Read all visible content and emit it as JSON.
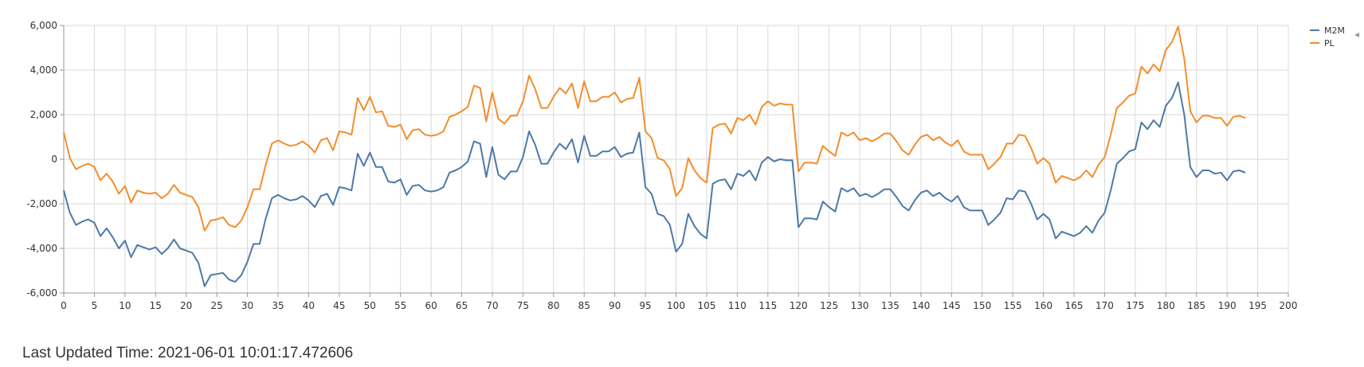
{
  "footer": {
    "label": "Last Updated Time:",
    "timestamp": "2021-06-01 10:01:17.472606"
  },
  "colors": {
    "M2M": "#4e79a7",
    "PL": "#f28e2b",
    "grid": "#d9d9d9",
    "axis": "#999999"
  },
  "chart_data": {
    "type": "line",
    "title": "",
    "xlabel": "",
    "ylabel": "",
    "xlim": [
      0,
      200
    ],
    "ylim": [
      -6000,
      6000
    ],
    "x_ticks": [
      0,
      5,
      10,
      15,
      20,
      25,
      30,
      35,
      40,
      45,
      50,
      55,
      60,
      65,
      70,
      75,
      80,
      85,
      90,
      95,
      100,
      105,
      110,
      115,
      120,
      125,
      130,
      135,
      140,
      145,
      150,
      155,
      160,
      165,
      170,
      175,
      180,
      185,
      190,
      195,
      200
    ],
    "y_ticks": [
      -6000,
      -4000,
      -2000,
      0,
      2000,
      4000,
      6000
    ],
    "y_tick_labels": [
      "-6,000",
      "-4,000",
      "-2,000",
      "0",
      "2,000",
      "4,000",
      "6,000"
    ],
    "grid": true,
    "legend_position": "top-right",
    "series": [
      {
        "name": "M2M",
        "color": "#4e79a7",
        "values": [
          -1400,
          -2400,
          -2950,
          -2800,
          -2700,
          -2850,
          -3450,
          -3100,
          -3500,
          -4000,
          -3650,
          -4400,
          -3850,
          -3950,
          -4050,
          -3950,
          -4250,
          -4000,
          -3600,
          -4000,
          -4100,
          -4200,
          -4650,
          -5700,
          -5200,
          -5150,
          -5100,
          -5400,
          -5500,
          -5200,
          -4600,
          -3800,
          -3800,
          -2650,
          -1750,
          -1600,
          -1750,
          -1850,
          -1800,
          -1650,
          -1850,
          -2150,
          -1650,
          -1550,
          -2050,
          -1250,
          -1300,
          -1400,
          250,
          -300,
          300,
          -350,
          -350,
          -1000,
          -1050,
          -900,
          -1600,
          -1200,
          -1150,
          -1400,
          -1450,
          -1400,
          -1250,
          -600,
          -500,
          -350,
          -100,
          800,
          700,
          -800,
          550,
          -700,
          -900,
          -550,
          -550,
          100,
          1250,
          650,
          -200,
          -200,
          300,
          700,
          450,
          900,
          -150,
          1050,
          150,
          150,
          350,
          350,
          550,
          100,
          250,
          300,
          1200,
          -1250,
          -1550,
          -2450,
          -2550,
          -2950,
          -4150,
          -3800,
          -2450,
          -3000,
          -3350,
          -3550,
          -1100,
          -950,
          -900,
          -1350,
          -650,
          -750,
          -500,
          -950,
          -150,
          100,
          -100,
          0,
          -50,
          -50,
          -3050,
          -2650,
          -2650,
          -2700,
          -1900,
          -2150,
          -2350,
          -1300,
          -1450,
          -1300,
          -1650,
          -1550,
          -1700,
          -1550,
          -1350,
          -1350,
          -1700,
          -2100,
          -2300,
          -1850,
          -1500,
          -1400,
          -1650,
          -1500,
          -1750,
          -1900,
          -1650,
          -2150,
          -2300,
          -2300,
          -2300,
          -2950,
          -2700,
          -2400,
          -1750,
          -1800,
          -1400,
          -1450,
          -2000,
          -2700,
          -2450,
          -2700,
          -3550,
          -3250,
          -3350,
          -3450,
          -3300,
          -3000,
          -3300,
          -2750,
          -2400,
          -1400,
          -200,
          50,
          350,
          450,
          1650,
          1350,
          1750,
          1450,
          2400,
          2750,
          3450,
          2000,
          -350,
          -800,
          -500,
          -500,
          -650,
          -600,
          -950,
          -550,
          -500,
          -600
        ]
      },
      {
        "name": "PL",
        "color": "#f28e2b",
        "values": [
          1200,
          50,
          -450,
          -300,
          -200,
          -350,
          -950,
          -650,
          -1000,
          -1550,
          -1200,
          -1950,
          -1400,
          -1500,
          -1550,
          -1500,
          -1750,
          -1550,
          -1150,
          -1500,
          -1600,
          -1700,
          -2150,
          -3200,
          -2750,
          -2700,
          -2600,
          -2950,
          -3050,
          -2750,
          -2150,
          -1350,
          -1350,
          -250,
          700,
          850,
          700,
          600,
          650,
          800,
          600,
          300,
          850,
          950,
          400,
          1250,
          1200,
          1100,
          2750,
          2200,
          2800,
          2100,
          2150,
          1500,
          1450,
          1550,
          900,
          1300,
          1350,
          1100,
          1050,
          1100,
          1250,
          1900,
          2000,
          2150,
          2350,
          3300,
          3200,
          1700,
          3000,
          1800,
          1600,
          1950,
          1950,
          2600,
          3750,
          3150,
          2300,
          2300,
          2800,
          3200,
          2950,
          3400,
          2300,
          3500,
          2600,
          2600,
          2800,
          2800,
          3000,
          2550,
          2700,
          2750,
          3650,
          1250,
          950,
          50,
          -50,
          -450,
          -1650,
          -1300,
          50,
          -500,
          -850,
          -1050,
          1400,
          1550,
          1600,
          1150,
          1850,
          1750,
          2000,
          1550,
          2350,
          2600,
          2400,
          2500,
          2450,
          2450,
          -550,
          -150,
          -150,
          -200,
          600,
          350,
          150,
          1200,
          1050,
          1200,
          850,
          950,
          800,
          950,
          1150,
          1150,
          800,
          400,
          200,
          650,
          1000,
          1100,
          850,
          1000,
          750,
          600,
          850,
          350,
          200,
          200,
          200,
          -450,
          -200,
          100,
          700,
          700,
          1100,
          1050,
          500,
          -200,
          50,
          -200,
          -1050,
          -750,
          -850,
          -950,
          -800,
          -500,
          -800,
          -250,
          100,
          1100,
          2300,
          2550,
          2850,
          2950,
          4150,
          3850,
          4250,
          3950,
          4900,
          5250,
          5950,
          4500,
          2150,
          1650,
          1950,
          1950,
          1850,
          1850,
          1500,
          1900,
          1950,
          1850
        ]
      }
    ]
  }
}
